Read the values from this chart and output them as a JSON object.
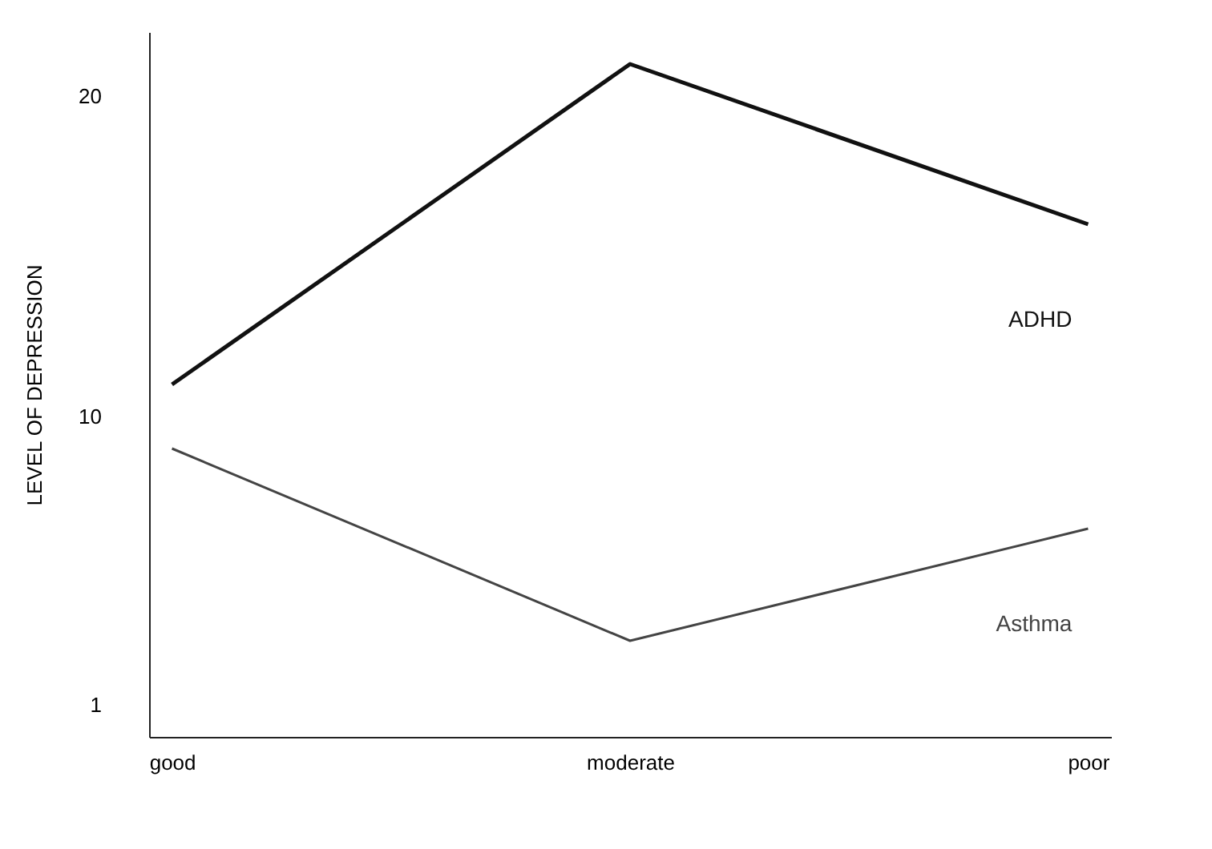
{
  "chart_data": {
    "type": "line",
    "ylabel": "LEVEL OF DEPRESSION",
    "categories": [
      "good",
      "moderate",
      "poor"
    ],
    "ylim": [
      0,
      22
    ],
    "yticks": [
      1,
      10,
      20
    ],
    "grid": false,
    "legend": false,
    "marker": "none",
    "line_style": "solid",
    "series": [
      {
        "name": "ADHD",
        "color": "#111111",
        "values": [
          11,
          21,
          16
        ]
      },
      {
        "name": "Asthma",
        "color": "#444444",
        "values": [
          9,
          3,
          6.5
        ]
      }
    ]
  }
}
